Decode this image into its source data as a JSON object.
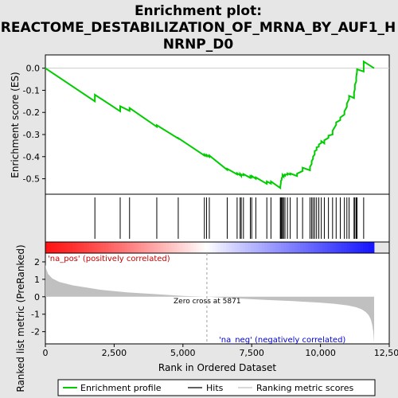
{
  "chart_data": {
    "type": "line",
    "title_lines": [
      "Enrichment plot:",
      "REACTOME_DESTABILIZATION_OF_MRNA_BY_AUF1_H",
      "NRNP_D0"
    ],
    "top_panel": {
      "ylabel": "Enrichment score (ES)",
      "ylim": [
        -0.57,
        0.06
      ],
      "yticks": [
        "0.0",
        "-0.1",
        "-0.2",
        "-0.3",
        "-0.4",
        "-0.5"
      ],
      "ytick_values": [
        0.0,
        -0.1,
        -0.2,
        -0.3,
        -0.4,
        -0.5
      ],
      "series": [
        {
          "name": "Enrichment profile",
          "color": "#00cc00",
          "x": [
            0,
            1800,
            1800,
            2720,
            2720,
            3060,
            3060,
            4050,
            4050,
            4830,
            4830,
            5780,
            5780,
            5860,
            5860,
            5960,
            5960,
            6610,
            6610,
            6970,
            6970,
            7080,
            7080,
            7120,
            7120,
            7200,
            7200,
            7450,
            7450,
            7500,
            7500,
            7650,
            7650,
            8050,
            8050,
            8200,
            8200,
            8540,
            8540,
            8560,
            8560,
            8590,
            8590,
            8620,
            8620,
            8660,
            8660,
            8710,
            8710,
            8800,
            8800,
            8900,
            8900,
            9150,
            9150,
            9350,
            9350,
            9620,
            9620,
            9680,
            9680,
            9730,
            9730,
            9790,
            9790,
            9860,
            9860,
            9940,
            9940,
            10030,
            10030,
            10140,
            10140,
            10290,
            10290,
            10440,
            10440,
            10570,
            10570,
            10720,
            10720,
            10870,
            10870,
            10960,
            10960,
            11040,
            11040,
            11220,
            11220,
            11250,
            11250,
            11300,
            11300,
            11330,
            11330,
            11570,
            11570,
            11950
          ],
          "y": [
            0.0,
            -0.15,
            -0.12,
            -0.195,
            -0.172,
            -0.193,
            -0.18,
            -0.265,
            -0.258,
            -0.318,
            -0.316,
            -0.395,
            -0.39,
            -0.398,
            -0.392,
            -0.401,
            -0.395,
            -0.46,
            -0.455,
            -0.48,
            -0.475,
            -0.484,
            -0.479,
            -0.487,
            -0.481,
            -0.484,
            -0.479,
            -0.496,
            -0.488,
            -0.493,
            -0.487,
            -0.5,
            -0.494,
            -0.523,
            -0.512,
            -0.522,
            -0.512,
            -0.542,
            -0.535,
            -0.52,
            -0.51,
            -0.505,
            -0.498,
            -0.49,
            -0.483,
            -0.49,
            -0.484,
            -0.487,
            -0.481,
            -0.482,
            -0.476,
            -0.481,
            -0.476,
            -0.488,
            -0.477,
            -0.465,
            -0.45,
            -0.462,
            -0.446,
            -0.433,
            -0.42,
            -0.41,
            -0.4,
            -0.39,
            -0.375,
            -0.37,
            -0.358,
            -0.355,
            -0.345,
            -0.338,
            -0.33,
            -0.34,
            -0.326,
            -0.315,
            -0.305,
            -0.3,
            -0.283,
            -0.256,
            -0.245,
            -0.235,
            -0.223,
            -0.21,
            -0.195,
            -0.175,
            -0.16,
            -0.14,
            -0.125,
            -0.135,
            -0.11,
            -0.095,
            -0.075,
            -0.06,
            -0.04,
            -0.015,
            -0.005,
            -0.015,
            0.03,
            0.0
          ]
        }
      ]
    },
    "hits_x": [
      1800,
      2720,
      3060,
      4050,
      4830,
      5780,
      5860,
      5960,
      6610,
      6970,
      7080,
      7120,
      7200,
      7450,
      7500,
      7650,
      8050,
      8200,
      8540,
      8560,
      8590,
      8620,
      8660,
      8710,
      8800,
      8900,
      9150,
      9350,
      9620,
      9680,
      9730,
      9790,
      9860,
      9940,
      10030,
      10140,
      10290,
      10440,
      10570,
      10720,
      10870,
      10960,
      11040,
      11220,
      11250,
      11300,
      11330,
      11570
    ],
    "bottom_panel": {
      "ylabel": "Ranked list metric (PreRanked)",
      "xlabel": "Rank in Ordered Dataset",
      "ylim": [
        -2.7,
        2.5
      ],
      "yticks": [
        "2",
        "1",
        "0",
        "-1",
        "-2"
      ],
      "ytick_values": [
        2,
        1,
        0,
        -1,
        -2
      ],
      "xlim": [
        0,
        12500
      ],
      "xticks": [
        "0",
        "2,500",
        "5,000",
        "7,500",
        "10,000",
        "12,500"
      ],
      "xtick_values": [
        0,
        2500,
        5000,
        7500,
        10000,
        12500
      ],
      "metric_x": [
        0,
        30,
        100,
        250,
        500,
        1000,
        2000,
        3000,
        4000,
        5000,
        5871,
        7000,
        8000,
        9000,
        10000,
        10500,
        11000,
        11300,
        11500,
        11650,
        11750,
        11830,
        11880,
        11920,
        11950
      ],
      "metric_y": [
        1.85,
        1.6,
        1.3,
        1.05,
        0.85,
        0.65,
        0.4,
        0.25,
        0.15,
        0.05,
        0.0,
        -0.1,
        -0.18,
        -0.25,
        -0.34,
        -0.4,
        -0.5,
        -0.6,
        -0.72,
        -0.88,
        -1.05,
        -1.3,
        -1.6,
        -2.0,
        -2.65
      ],
      "zero_cross_label": "Zero cross at 5871",
      "zero_cross_x": 5871,
      "pos_label": "'na_pos' (positively correlated)",
      "neg_label": "'na_neg' (negatively correlated)"
    },
    "legend": [
      "Enrichment profile",
      "Hits",
      "Ranking metric scores"
    ],
    "colors": {
      "profile": "#00cc00",
      "hits": "#000000",
      "metric": "#c0c0c0",
      "pos_strong": "#ff0000",
      "neg_strong": "#0000ff"
    }
  }
}
